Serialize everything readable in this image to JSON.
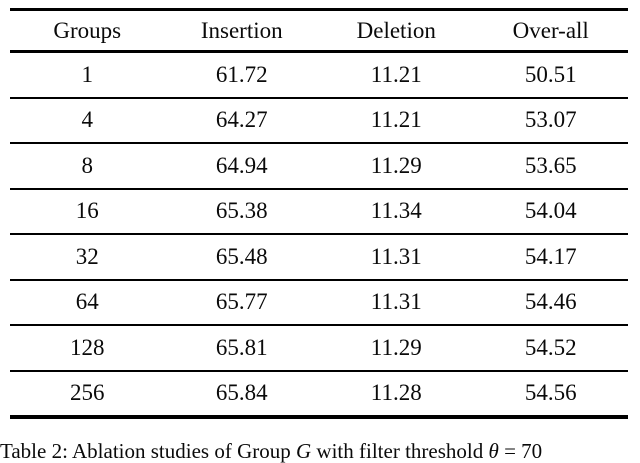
{
  "table": {
    "columns": [
      "Groups",
      "Insertion",
      "Deletion",
      "Over-all"
    ],
    "rows": [
      {
        "groups": "1",
        "insertion": "61.72",
        "deletion": "11.21",
        "overall": "50.51"
      },
      {
        "groups": "4",
        "insertion": "64.27",
        "deletion": "11.21",
        "overall": "53.07"
      },
      {
        "groups": "8",
        "insertion": "64.94",
        "deletion": "11.29",
        "overall": "53.65"
      },
      {
        "groups": "16",
        "insertion": "65.38",
        "deletion": "11.34",
        "overall": "54.04"
      },
      {
        "groups": "32",
        "insertion": "65.48",
        "deletion": "11.31",
        "overall": "54.17"
      },
      {
        "groups": "64",
        "insertion": "65.77",
        "deletion": "11.31",
        "overall": "54.46"
      },
      {
        "groups": "128",
        "insertion": "65.81",
        "deletion": "11.29",
        "overall": "54.52"
      },
      {
        "groups": "256",
        "insertion": "65.84",
        "deletion": "11.28",
        "overall": "54.56"
      }
    ]
  },
  "caption": {
    "prefix": "Table 2: Ablation studies of Group ",
    "group_symbol": "G",
    "middle": " with filter threshold ",
    "theta_symbol": "θ",
    "suffix": " = 70"
  }
}
